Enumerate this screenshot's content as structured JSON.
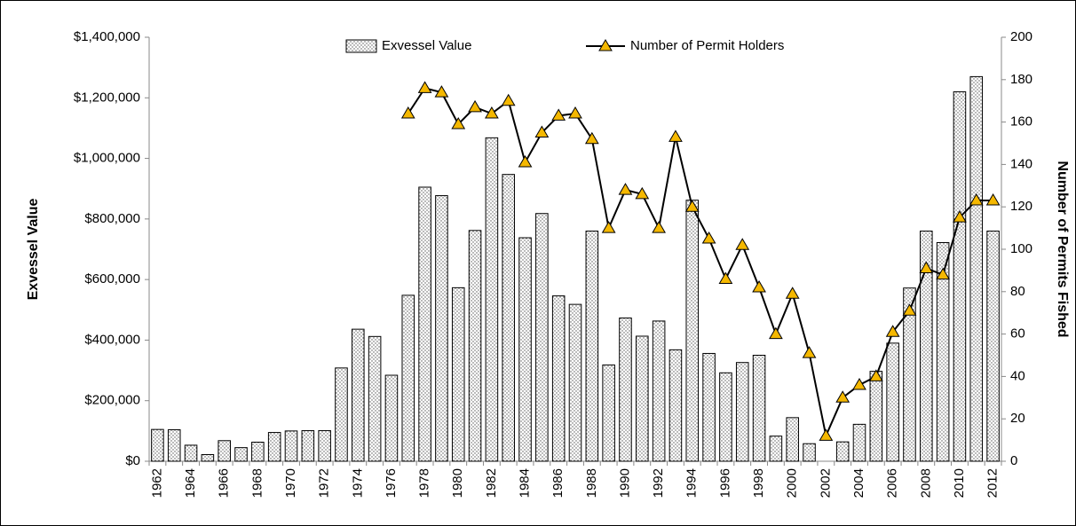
{
  "chart_data": {
    "type": "bar-line",
    "y_label": "Exvessel Value",
    "y2_label": "Number of Permits Fished",
    "categories": [
      "1962",
      null,
      "1964",
      null,
      "1966",
      null,
      "1968",
      null,
      "1970",
      null,
      "1972",
      null,
      "1974",
      null,
      "1976",
      null,
      "1978",
      null,
      "1980",
      null,
      "1982",
      null,
      "1984",
      null,
      "1986",
      null,
      "1988",
      null,
      "1990",
      null,
      "1992",
      null,
      "1994",
      null,
      "1996",
      null,
      "1998",
      null,
      "2000",
      null,
      "2002",
      null,
      "2004",
      null,
      "2006",
      null,
      "2008",
      null,
      "2010",
      null,
      "2012"
    ],
    "series": [
      {
        "name": "Exvessel Value",
        "type": "bar",
        "color": "#000000",
        "values": [
          105000,
          104000,
          53000,
          22000,
          68000,
          45000,
          63000,
          95000,
          100000,
          101000,
          101000,
          308000,
          436000,
          412000,
          284000,
          548000,
          905000,
          877000,
          573000,
          762000,
          1068000,
          947000,
          738000,
          818000,
          546000,
          518000,
          760000,
          318000,
          473000,
          413000,
          463000,
          368000,
          862000,
          356000,
          292000,
          326000,
          350000,
          83000,
          144000,
          58000,
          0,
          64000,
          122000,
          297000,
          390000,
          572000,
          760000,
          722000,
          1220000,
          1270000,
          760000
        ]
      },
      {
        "name": "Number of Permit Holders",
        "type": "line",
        "axis": "y2",
        "color": "#000000",
        "marker_color": "#f5b800",
        "values": [
          null,
          null,
          null,
          null,
          null,
          null,
          null,
          null,
          null,
          null,
          null,
          null,
          null,
          null,
          null,
          164,
          176,
          174,
          159,
          167,
          164,
          170,
          141,
          155,
          163,
          164,
          152,
          110,
          128,
          126,
          110,
          153,
          120,
          105,
          86,
          102,
          82,
          60,
          79,
          51,
          12,
          30,
          36,
          40,
          61,
          71,
          91,
          88,
          115,
          123,
          123
        ]
      }
    ],
    "ylim": [
      0,
      1400000
    ],
    "yticks": [
      {
        "value": 0,
        "label": "$0"
      },
      {
        "value": 200000,
        "label": "$200,000"
      },
      {
        "value": 400000,
        "label": "$400,000"
      },
      {
        "value": 600000,
        "label": "$600,000"
      },
      {
        "value": 800000,
        "label": "$800,000"
      },
      {
        "value": 1000000,
        "label": "$1,000,000"
      },
      {
        "value": 1200000,
        "label": "$1,200,000"
      },
      {
        "value": 1400000,
        "label": "$1,400,000"
      }
    ],
    "y2lim": [
      0,
      200
    ],
    "y2ticks": [
      0,
      20,
      40,
      60,
      80,
      100,
      120,
      140,
      160,
      180,
      200
    ],
    "legend": "top"
  }
}
